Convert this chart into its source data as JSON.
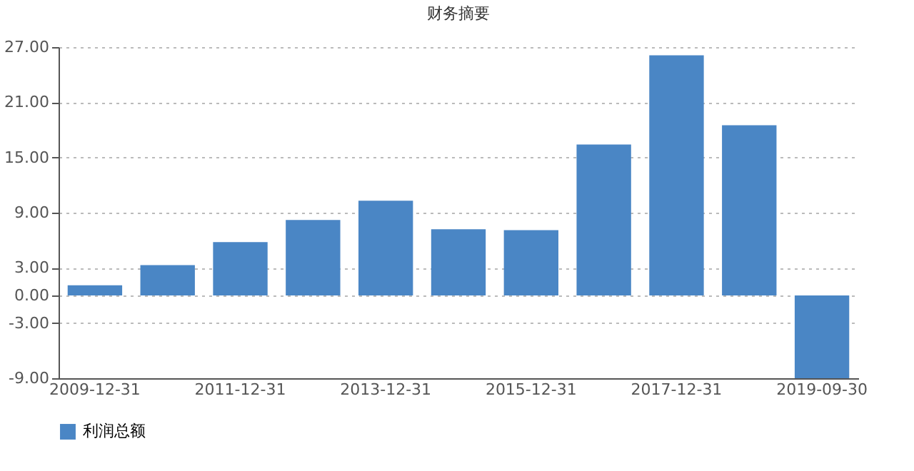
{
  "chart_data": {
    "type": "bar",
    "title": "财务摘要",
    "categories": [
      "2009-12-31",
      null,
      "2011-12-31",
      null,
      "2013-12-31",
      null,
      "2015-12-31",
      null,
      "2017-12-31",
      null,
      "2019-09-30"
    ],
    "series": [
      {
        "name": "利润总额",
        "color": "#4a86c5",
        "values": [
          1.1,
          3.3,
          5.8,
          8.2,
          10.3,
          7.2,
          7.1,
          16.4,
          26.1,
          18.5,
          -9.0
        ]
      }
    ],
    "ylim": [
      -9,
      27
    ],
    "yticks": [
      {
        "value": -9,
        "label": "-9.00"
      },
      {
        "value": -3,
        "label": "-3.00"
      },
      {
        "value": 0,
        "label": "0.00"
      },
      {
        "value": 3,
        "label": "3.00"
      },
      {
        "value": 9,
        "label": "9.00"
      },
      {
        "value": 15,
        "label": "15.00"
      },
      {
        "value": 21,
        "label": "21.00"
      },
      {
        "value": 27,
        "label": "27.00"
      }
    ],
    "grid": "y",
    "legend": "bottom"
  }
}
